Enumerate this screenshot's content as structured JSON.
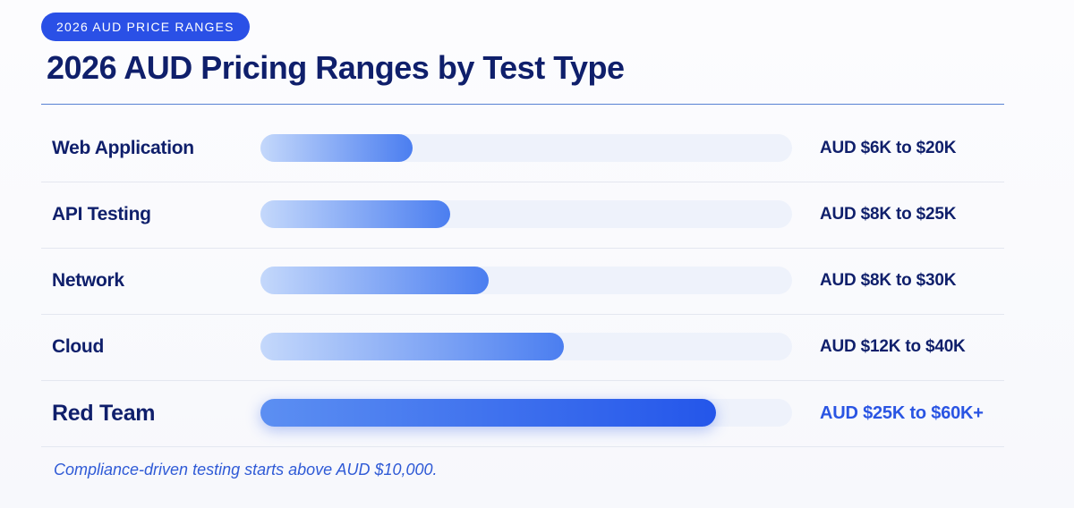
{
  "badge": "2026 AUD PRICE RANGES",
  "colors": {
    "title": "#0f1f6b",
    "accent": "#2a50e6",
    "track": "#eef2fb",
    "bar_light": "#c4d8fb",
    "bar_dark": "#2456ea"
  },
  "chart_data": {
    "type": "bar",
    "orientation": "horizontal",
    "title": "2026 AUD Pricing Ranges by Test Type",
    "categories": [
      "Web Application",
      "API Testing",
      "Network",
      "Cloud",
      "Red Team"
    ],
    "range_labels": [
      "AUD $6K to $20K",
      "AUD $8K to $25K",
      "AUD $8K to $30K",
      "AUD $12K to $40K",
      "AUD $25K to $60K+"
    ],
    "values": [
      20,
      25,
      30,
      40,
      60
    ],
    "xlim": [
      0,
      70
    ],
    "highlighted": "Red Team",
    "grid": false,
    "legend": "none"
  },
  "footnote": "Compliance-driven testing starts above AUD $10,000."
}
